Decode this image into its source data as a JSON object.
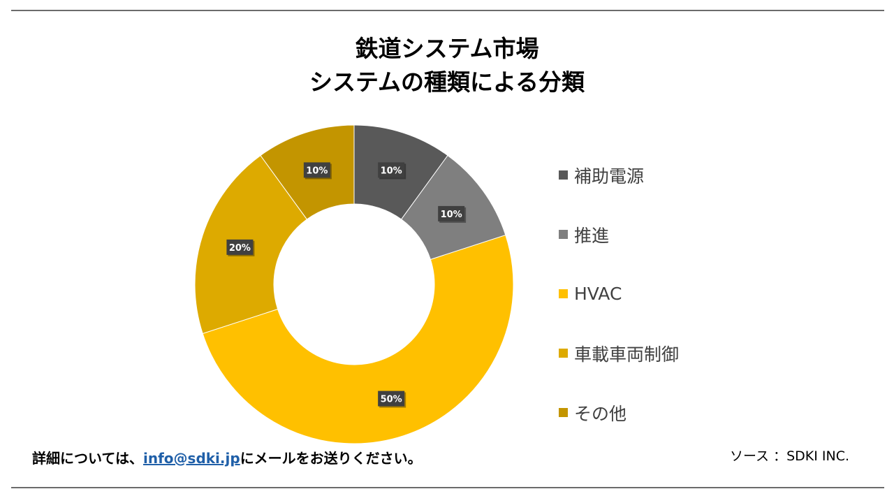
{
  "chart_data": {
    "type": "pie",
    "donut": true,
    "title_line1": "鉄道システム市場",
    "title_line2": "システムの種類による分類",
    "categories": [
      "補助電源",
      "推進",
      "HVAC",
      "車載車両制御",
      "その他"
    ],
    "values": [
      10,
      10,
      50,
      20,
      10
    ],
    "data_labels": [
      "10%",
      "10%",
      "50%",
      "20%",
      "10%"
    ],
    "colors": [
      "#595959",
      "#7f7f7f",
      "#ffc000",
      "#ddaa00",
      "#c39500"
    ],
    "legend_position": "right"
  },
  "footer": {
    "note_prefix": "詳細については、",
    "email": "info@sdki.jp",
    "note_suffix": "にメールをお送りください。",
    "source": "ソース ：SDKI INC."
  }
}
